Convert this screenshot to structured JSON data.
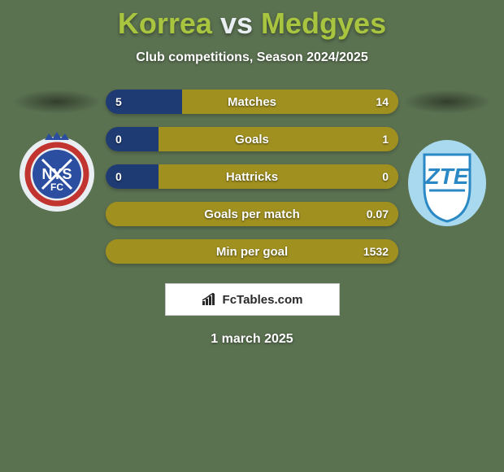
{
  "background_color": "#5b7251",
  "title": {
    "left": "Korrea",
    "vs": "vs",
    "right": "Medgyes",
    "left_color": "#a9c53f",
    "vs_color": "#e8eef2",
    "right_color": "#a9c53f",
    "fontsize": 36
  },
  "subtitle": "Club competitions, Season 2024/2025",
  "stats": {
    "bar_radius": 15,
    "left_color": "#1f3b73",
    "right_color": "#a09020",
    "rows": [
      {
        "label": "Matches",
        "left": "5",
        "right": "14",
        "left_pct": 26,
        "right_pct": 74
      },
      {
        "label": "Goals",
        "left": "0",
        "right": "1",
        "left_pct": 18,
        "right_pct": 100
      },
      {
        "label": "Hattricks",
        "left": "0",
        "right": "0",
        "left_pct": 18,
        "right_pct": 100
      },
      {
        "label": "Goals per match",
        "left": "",
        "right": "0.07",
        "left_pct": 0,
        "right_pct": 100
      },
      {
        "label": "Min per goal",
        "left": "",
        "right": "1532",
        "left_pct": 0,
        "right_pct": 100
      }
    ]
  },
  "brand": "FcTables.com",
  "date": "1 march 2025",
  "team_left": {
    "name": "NYSFC",
    "outer_color": "#e8eef2",
    "ring_color": "#c2342f",
    "inner_color": "#2b4ea0",
    "crown_color": "#2b4ea0"
  },
  "team_right": {
    "name": "ZTE",
    "outer_color": "#a9d9ee",
    "shield_fill": "#ffffff",
    "shield_stroke": "#2a88c4",
    "letter_color": "#2a88c4"
  }
}
